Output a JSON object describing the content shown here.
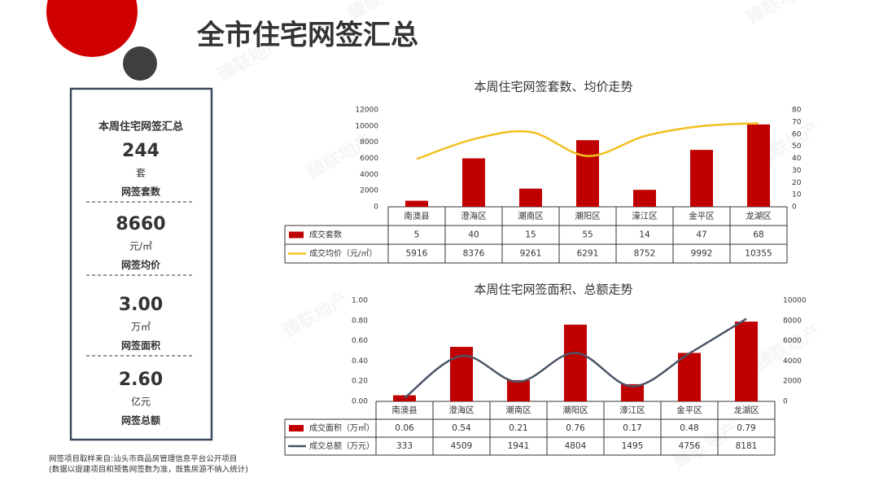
{
  "title": "全市住宅网签汇总",
  "watermark": "臻联地产",
  "summary": {
    "title": "本周住宅网签汇总",
    "items": [
      {
        "value": "244",
        "unit": "套",
        "label": "网签套数"
      },
      {
        "value": "8660",
        "unit": "元/㎡",
        "label": "网签均价"
      },
      {
        "value": "3.00",
        "unit": "万㎡",
        "label": "网签面积"
      },
      {
        "value": "2.60",
        "unit": "亿元",
        "label": "网签总额"
      }
    ]
  },
  "footnote": [
    "网签项目取样来自:汕头市商品房管理信息平台公开项目",
    "(数据以提建项目和预售网签数为准，既售房源不纳入统计)"
  ],
  "chart_data": [
    {
      "type": "combo",
      "title": "本周住宅网签套数、均价走势",
      "categories": [
        "南澳县",
        "澄海区",
        "潮南区",
        "潮阳区",
        "濠江区",
        "金平区",
        "龙湖区"
      ],
      "series": [
        {
          "name": "成交套数",
          "type": "bar",
          "axis": "y2",
          "color": "#c00000",
          "values": [
            5,
            40,
            15,
            55,
            14,
            47,
            68
          ]
        },
        {
          "name": "成交均价（元/㎡）",
          "type": "line",
          "color": "#f2c01e",
          "values": [
            5916,
            8376,
            9261,
            6291,
            8752,
            9992,
            10355
          ]
        }
      ],
      "ylim": [
        0,
        12000
      ],
      "yticks": [
        0,
        2000,
        4000,
        6000,
        8000,
        10000,
        12000
      ],
      "y2lim": [
        0,
        80
      ],
      "y2ticks": [
        0,
        10,
        20,
        30,
        40,
        50,
        60,
        70,
        80
      ]
    },
    {
      "type": "combo",
      "title": "本周住宅网签面积、总额走势",
      "categories": [
        "南澳县",
        "澄海区",
        "潮南区",
        "潮阳区",
        "濠江区",
        "金平区",
        "龙湖区"
      ],
      "series": [
        {
          "name": "成交面积（万㎡）",
          "type": "bar",
          "color": "#c00000",
          "values": [
            0.06,
            0.54,
            0.21,
            0.76,
            0.17,
            0.48,
            0.79
          ]
        },
        {
          "name": "成交总额（万元）",
          "type": "line",
          "axis": "y2",
          "color": "#4a5565",
          "values": [
            333,
            4509,
            1941,
            4804,
            1495,
            4756,
            8181
          ]
        }
      ],
      "ylim": [
        0,
        1
      ],
      "yticks": [
        {
          "value": 0,
          "label": "0.00"
        },
        {
          "value": 0.2,
          "label": "0.20"
        },
        {
          "value": 0.4,
          "label": "0.40"
        },
        {
          "value": 0.6,
          "label": "0.60"
        },
        {
          "value": 0.8,
          "label": "0.80"
        },
        {
          "value": 1,
          "label": "1.00"
        }
      ],
      "y2lim": [
        0,
        10000
      ],
      "y2ticks": [
        0,
        2000,
        4000,
        6000,
        8000,
        10000
      ]
    }
  ]
}
